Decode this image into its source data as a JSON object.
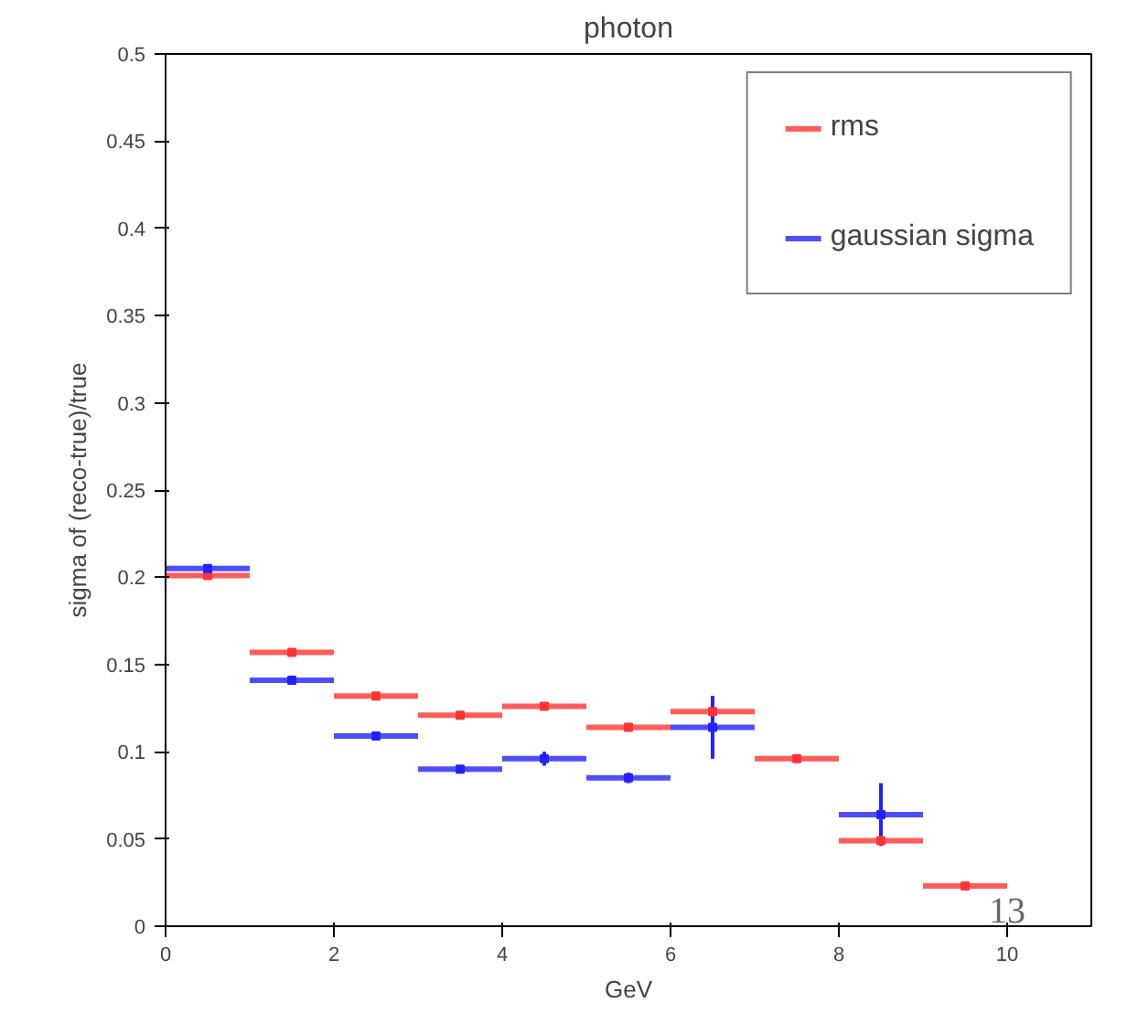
{
  "chart_data": {
    "type": "scatter",
    "title": "photon",
    "xlabel": "GeV",
    "ylabel": "sigma of (reco-true)/true",
    "x": [
      0.5,
      1.5,
      2.5,
      3.5,
      4.5,
      5.5,
      6.5,
      7.5,
      8.5,
      9.5
    ],
    "series": [
      {
        "name": "rms",
        "color": "#ff3333",
        "values": [
          0.201,
          0.157,
          0.132,
          0.121,
          0.126,
          0.114,
          0.123,
          0.096,
          0.049,
          0.023
        ],
        "xerrors": [
          0.5,
          0.5,
          0.5,
          0.5,
          0.5,
          0.5,
          0.5,
          0.5,
          0.5,
          0.5
        ]
      },
      {
        "name": "gaussian sigma",
        "color": "#2222ff",
        "values": [
          0.205,
          0.141,
          0.109,
          0.09,
          0.096,
          0.085,
          0.114,
          null,
          0.064,
          null
        ],
        "xerrors": [
          0.5,
          0.5,
          0.5,
          0.5,
          0.5,
          0.5,
          0.5,
          null,
          0.5,
          null
        ],
        "errors": [
          null,
          null,
          0.002,
          null,
          0.004,
          0.003,
          0.018,
          null,
          0.018,
          null
        ]
      }
    ],
    "xlim": [
      0,
      11
    ],
    "ylim": [
      0,
      0.5
    ],
    "xticks": [
      0,
      2,
      4,
      6,
      8,
      10
    ],
    "yticks": [
      0,
      0.05,
      0.1,
      0.15,
      0.2,
      0.25,
      0.3,
      0.35,
      0.4,
      0.45,
      0.5
    ],
    "marker": "square",
    "grid": false,
    "legend": "top right",
    "annotations": [
      "13"
    ]
  }
}
